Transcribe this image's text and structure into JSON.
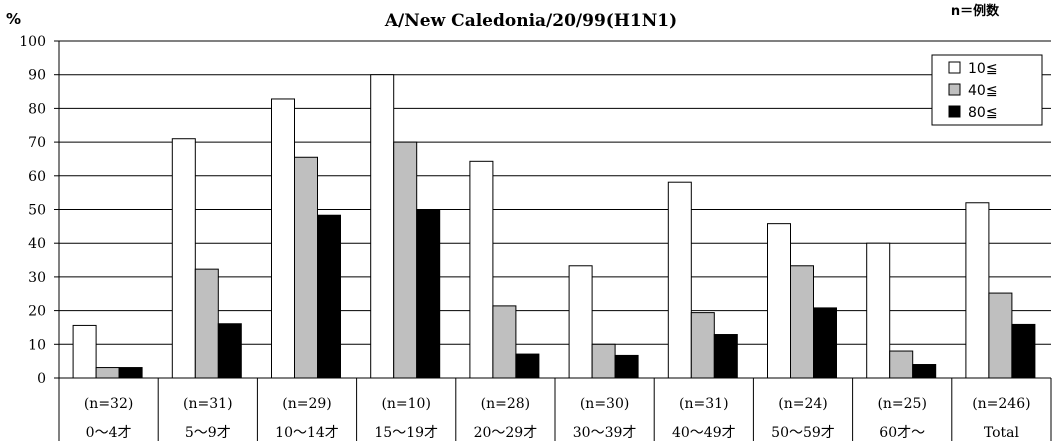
{
  "chart_data": {
    "type": "bar",
    "title": "A/New Caledonia/20/99(H1N1)",
    "ylabel": "%",
    "note": "n＝例数",
    "ylim": [
      0,
      100
    ],
    "yticks": [
      "0",
      "10",
      "20",
      "30",
      "40",
      "50",
      "60",
      "70",
      "80",
      "90",
      "100"
    ],
    "categories": [
      "0～4才",
      "5～9才",
      "10～14才",
      "15～19才",
      "20～29才",
      "30～39才",
      "40～49才",
      "50～59才",
      "60才～",
      "Total"
    ],
    "sample_sizes": [
      "(n=32)",
      "(n=31)",
      "(n=29)",
      "(n=10)",
      "(n=28)",
      "(n=30)",
      "(n=31)",
      "(n=24)",
      "(n=25)",
      "(n=246)"
    ],
    "series": [
      {
        "name": "10≦",
        "color": "#ffffff",
        "values": [
          15.6,
          71.0,
          82.8,
          90.0,
          64.3,
          33.3,
          58.1,
          45.8,
          40.0,
          52.0
        ]
      },
      {
        "name": "40≦",
        "color": "#bfbfbf",
        "values": [
          3.1,
          32.3,
          65.5,
          70.0,
          21.4,
          10.0,
          19.4,
          33.3,
          8.0,
          25.2
        ]
      },
      {
        "name": "80≦",
        "color": "#000000",
        "values": [
          3.1,
          16.1,
          48.3,
          50.0,
          7.1,
          6.7,
          12.9,
          20.8,
          4.0,
          15.9
        ]
      }
    ],
    "grid": true,
    "legend": "top-right"
  }
}
